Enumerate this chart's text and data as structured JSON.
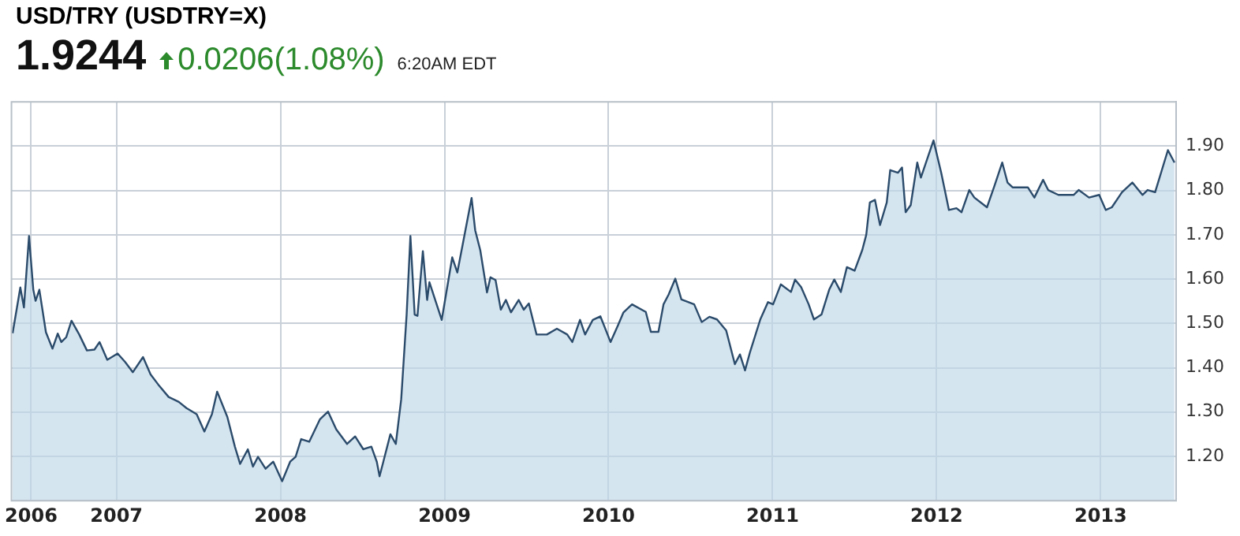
{
  "chart_data": {
    "type": "area",
    "title": "USD/TRY (USDTRY=X)",
    "annotations": [
      "1.9244",
      "0.0206(1.08%)",
      "6:20AM EDT"
    ],
    "x": [
      2006.367,
      2006.414,
      2006.436,
      2006.467,
      2006.493,
      2006.507,
      2006.53,
      2006.57,
      2006.61,
      2006.642,
      2006.664,
      2006.694,
      2006.726,
      2006.773,
      2006.82,
      2006.866,
      2006.897,
      2006.944,
      2007.007,
      2007.053,
      2007.1,
      2007.162,
      2007.208,
      2007.255,
      2007.318,
      2007.38,
      2007.427,
      2007.489,
      2007.536,
      2007.582,
      2007.614,
      2007.676,
      2007.722,
      2007.754,
      2007.801,
      2007.832,
      2007.863,
      2007.909,
      2007.956,
      2008.01,
      2008.059,
      2008.092,
      2008.126,
      2008.175,
      2008.241,
      2008.29,
      2008.34,
      2008.406,
      2008.455,
      2008.505,
      2008.554,
      2008.587,
      2008.604,
      2008.627,
      2008.67,
      2008.703,
      2008.736,
      2008.769,
      2008.792,
      2008.818,
      2008.835,
      2008.868,
      2008.894,
      2008.908,
      2008.983,
      2009.047,
      2009.078,
      2009.119,
      2009.165,
      2009.187,
      2009.218,
      2009.259,
      2009.28,
      2009.311,
      2009.343,
      2009.374,
      2009.405,
      2009.452,
      2009.483,
      2009.514,
      2009.561,
      2009.624,
      2009.685,
      2009.748,
      2009.779,
      2009.826,
      2009.857,
      2009.904,
      2009.95,
      2010.012,
      2010.059,
      2010.091,
      2010.143,
      2010.227,
      2010.258,
      2010.304,
      2010.335,
      2010.366,
      2010.407,
      2010.444,
      2010.522,
      2010.568,
      2010.615,
      2010.661,
      2010.717,
      2010.77,
      2010.801,
      2010.832,
      2010.863,
      2010.925,
      2010.972,
      2011.003,
      2011.05,
      2011.112,
      2011.137,
      2011.174,
      2011.22,
      2011.252,
      2011.298,
      2011.345,
      2011.376,
      2011.416,
      2011.453,
      2011.5,
      2011.547,
      2011.571,
      2011.593,
      2011.624,
      2011.655,
      2011.696,
      2011.717,
      2011.764,
      2011.789,
      2011.811,
      2011.842,
      2011.882,
      2011.904,
      2011.981,
      2012.028,
      2012.075,
      2012.121,
      2012.152,
      2012.199,
      2012.23,
      2012.307,
      2012.354,
      2012.4,
      2012.432,
      2012.463,
      2012.556,
      2012.596,
      2012.649,
      2012.68,
      2012.742,
      2012.835,
      2012.866,
      2012.929,
      2012.991,
      2013.031,
      2013.068,
      2013.13,
      2013.193,
      2013.255,
      2013.286,
      2013.332,
      2013.41,
      2013.45
    ],
    "series": [
      {
        "color": "#2b4b6b",
        "values": [
          1.478,
          1.581,
          1.536,
          1.697,
          1.576,
          1.551,
          1.576,
          1.48,
          1.443,
          1.477,
          1.458,
          1.469,
          1.506,
          1.475,
          1.439,
          1.441,
          1.458,
          1.418,
          1.432,
          1.413,
          1.39,
          1.424,
          1.385,
          1.362,
          1.334,
          1.323,
          1.309,
          1.295,
          1.256,
          1.295,
          1.346,
          1.289,
          1.222,
          1.183,
          1.216,
          1.177,
          1.199,
          1.172,
          1.188,
          1.144,
          1.188,
          1.199,
          1.239,
          1.233,
          1.284,
          1.301,
          1.261,
          1.228,
          1.245,
          1.216,
          1.222,
          1.188,
          1.155,
          1.188,
          1.25,
          1.228,
          1.329,
          1.52,
          1.697,
          1.52,
          1.517,
          1.663,
          1.553,
          1.593,
          1.508,
          1.649,
          1.615,
          1.694,
          1.783,
          1.71,
          1.665,
          1.57,
          1.604,
          1.598,
          1.531,
          1.553,
          1.525,
          1.553,
          1.531,
          1.545,
          1.475,
          1.475,
          1.488,
          1.475,
          1.458,
          1.508,
          1.475,
          1.508,
          1.516,
          1.458,
          1.497,
          1.525,
          1.543,
          1.526,
          1.481,
          1.481,
          1.543,
          1.565,
          1.601,
          1.554,
          1.543,
          1.503,
          1.515,
          1.509,
          1.484,
          1.408,
          1.43,
          1.394,
          1.436,
          1.509,
          1.548,
          1.543,
          1.588,
          1.571,
          1.599,
          1.582,
          1.543,
          1.509,
          1.52,
          1.576,
          1.599,
          1.571,
          1.627,
          1.619,
          1.666,
          1.7,
          1.773,
          1.779,
          1.722,
          1.773,
          1.846,
          1.84,
          1.852,
          1.751,
          1.767,
          1.863,
          1.829,
          1.913,
          1.84,
          1.756,
          1.76,
          1.751,
          1.801,
          1.784,
          1.762,
          1.812,
          1.863,
          1.818,
          1.807,
          1.807,
          1.784,
          1.824,
          1.801,
          1.79,
          1.79,
          1.801,
          1.784,
          1.79,
          1.756,
          1.762,
          1.796,
          1.818,
          1.79,
          1.801,
          1.796,
          1.891,
          1.863
        ]
      }
    ],
    "xlim": [
      2006.36,
      2013.46
    ],
    "xticks": [
      {
        "value": 2006.48,
        "label": "2006"
      },
      2007,
      2008,
      2009,
      2010,
      2011,
      2012,
      2013
    ],
    "ylim": [
      1.1,
      2.0
    ],
    "yticks": [
      {
        "value": 1.2,
        "label": "1.20"
      },
      {
        "value": 1.3,
        "label": "1.30"
      },
      {
        "value": 1.4,
        "label": "1.40"
      },
      {
        "value": 1.5,
        "label": "1.50"
      },
      {
        "value": 1.6,
        "label": "1.60"
      },
      {
        "value": 1.7,
        "label": "1.70"
      },
      {
        "value": 1.8,
        "label": "1.80"
      },
      {
        "value": 1.9,
        "label": "1.90"
      }
    ],
    "grid": true,
    "legend": false,
    "marker": "none",
    "line_style": "solid"
  }
}
